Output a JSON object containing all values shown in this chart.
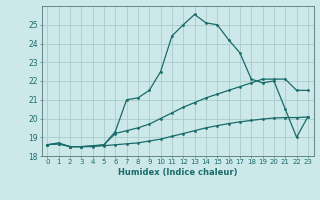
{
  "xlabel": "Humidex (Indice chaleur)",
  "bg_color": "#cce8e8",
  "grid_color": "#aacccc",
  "line_color": "#1a6b6b",
  "ylim": [
    18,
    26
  ],
  "xlim": [
    -0.5,
    23.5
  ],
  "yticks": [
    18,
    19,
    20,
    21,
    22,
    23,
    24,
    25
  ],
  "xticks": [
    0,
    1,
    2,
    3,
    4,
    5,
    6,
    7,
    8,
    9,
    10,
    11,
    12,
    13,
    14,
    15,
    16,
    17,
    18,
    19,
    20,
    21,
    22,
    23
  ],
  "line1_x": [
    0,
    1,
    2,
    3,
    4,
    5,
    6,
    7,
    8,
    9,
    10,
    11,
    12,
    13,
    14,
    15,
    16,
    17,
    18,
    19,
    20,
    21,
    22,
    23
  ],
  "line1_y": [
    18.6,
    18.7,
    18.5,
    18.5,
    18.5,
    18.6,
    19.3,
    21.0,
    21.1,
    21.5,
    22.5,
    24.4,
    25.0,
    25.55,
    25.1,
    25.0,
    24.2,
    23.5,
    22.1,
    21.9,
    22.0,
    20.5,
    19.0,
    20.1
  ],
  "line2_x": [
    0,
    1,
    2,
    3,
    4,
    5,
    6,
    7,
    8,
    9,
    10,
    11,
    12,
    13,
    14,
    15,
    16,
    17,
    18,
    19,
    20,
    21,
    22,
    23
  ],
  "line2_y": [
    18.6,
    18.65,
    18.5,
    18.5,
    18.55,
    18.6,
    19.2,
    19.35,
    19.5,
    19.7,
    20.0,
    20.3,
    20.6,
    20.85,
    21.1,
    21.3,
    21.5,
    21.7,
    21.9,
    22.1,
    22.1,
    22.1,
    21.5,
    21.5
  ],
  "line3_x": [
    0,
    1,
    2,
    3,
    4,
    5,
    6,
    7,
    8,
    9,
    10,
    11,
    12,
    13,
    14,
    15,
    16,
    17,
    18,
    19,
    20,
    21,
    22,
    23
  ],
  "line3_y": [
    18.6,
    18.65,
    18.5,
    18.5,
    18.52,
    18.55,
    18.6,
    18.65,
    18.7,
    18.8,
    18.9,
    19.05,
    19.2,
    19.35,
    19.5,
    19.62,
    19.73,
    19.82,
    19.9,
    19.97,
    20.03,
    20.05,
    20.05,
    20.08
  ]
}
